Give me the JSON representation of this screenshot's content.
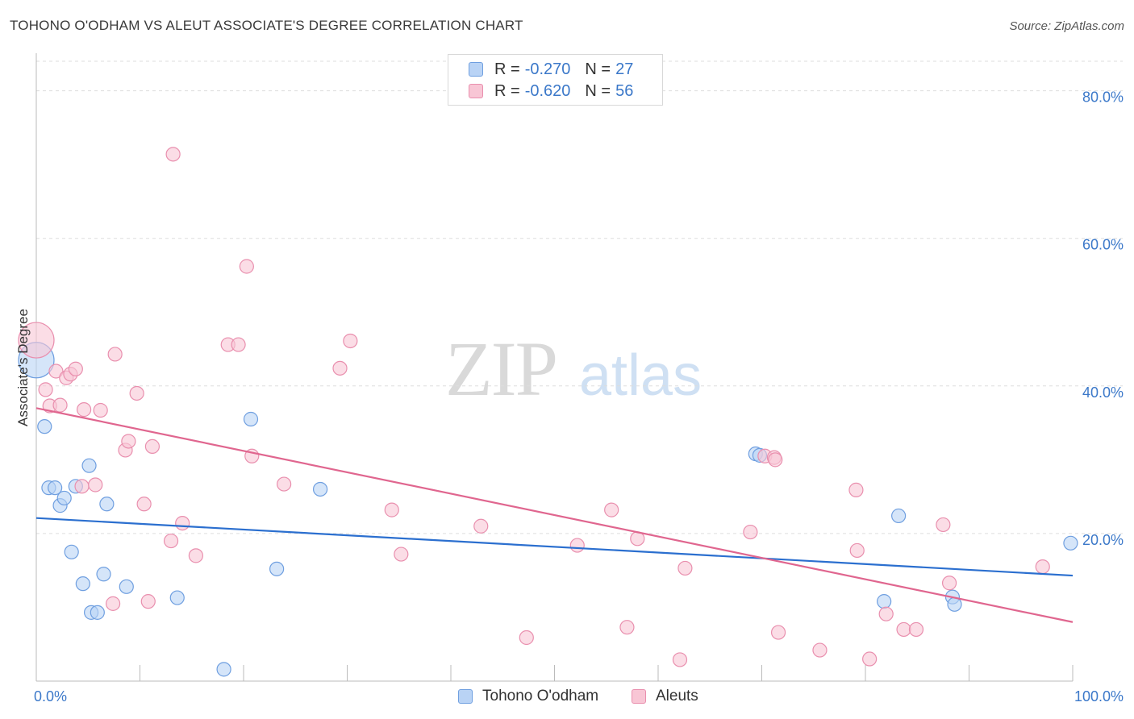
{
  "title": "TOHONO O'ODHAM VS ALEUT ASSOCIATE'S DEGREE CORRELATION CHART",
  "source": "Source: ZipAtlas.com",
  "watermark": {
    "zip": "ZIP",
    "atlas": "atlas"
  },
  "legend_top": {
    "rows": [
      {
        "r_label": "R =",
        "r_value": "-0.270",
        "n_label": "N =",
        "n_value": "27"
      },
      {
        "r_label": "R =",
        "r_value": "-0.620",
        "n_label": "N =",
        "n_value": "56"
      }
    ]
  },
  "legend_bottom": [
    "Tohono O'odham",
    "Aleuts"
  ],
  "colors": {
    "blue_fill": "#b9d3f5",
    "blue_stroke": "#6f9fe0",
    "blue_line": "#2b6fcf",
    "pink_fill": "#f8c6d5",
    "pink_stroke": "#e98fae",
    "pink_line": "#e0668f",
    "tick_text": "#3b78c9",
    "grid": "#dddddd"
  },
  "chart_data": {
    "type": "scatter",
    "title": "TOHONO O'ODHAM VS ALEUT ASSOCIATE'S DEGREE CORRELATION CHART",
    "xlabel": "",
    "ylabel": "Associate's Degree",
    "xlim": [
      0,
      100
    ],
    "ylim": [
      0,
      84
    ],
    "x_tick_labels": [
      "0.0%",
      "100.0%"
    ],
    "y_ticks": [
      20,
      40,
      60,
      80
    ],
    "y_tick_labels": [
      "20.0%",
      "40.0%",
      "60.0%",
      "80.0%"
    ],
    "grid": "horizontal dashed",
    "legend": "top-center",
    "series": [
      {
        "name": "Tohono O'odham",
        "color": "#6f9fe0",
        "points": [
          [
            0.0,
            43.5
          ],
          [
            0.8,
            34.5
          ],
          [
            1.2,
            26.2
          ],
          [
            1.8,
            26.2
          ],
          [
            2.3,
            23.8
          ],
          [
            2.7,
            24.8
          ],
          [
            3.4,
            17.5
          ],
          [
            4.5,
            13.2
          ],
          [
            3.8,
            26.4
          ],
          [
            5.1,
            29.2
          ],
          [
            5.3,
            9.3
          ],
          [
            5.9,
            9.3
          ],
          [
            6.5,
            14.5
          ],
          [
            6.8,
            24.0
          ],
          [
            8.7,
            12.8
          ],
          [
            13.6,
            11.3
          ],
          [
            18.1,
            1.6
          ],
          [
            20.7,
            35.5
          ],
          [
            23.2,
            15.2
          ],
          [
            27.4,
            26.0
          ],
          [
            69.4,
            30.8
          ],
          [
            69.8,
            30.6
          ],
          [
            83.2,
            22.4
          ],
          [
            81.8,
            10.8
          ],
          [
            88.4,
            11.4
          ],
          [
            88.6,
            10.4
          ],
          [
            99.8,
            18.7
          ]
        ]
      },
      {
        "name": "Aleuts",
        "color": "#e98fae",
        "points": [
          [
            0.0,
            46.2
          ],
          [
            0.9,
            39.5
          ],
          [
            1.3,
            37.3
          ],
          [
            1.9,
            42.0
          ],
          [
            2.3,
            37.4
          ],
          [
            2.9,
            41.1
          ],
          [
            3.3,
            41.6
          ],
          [
            3.8,
            42.3
          ],
          [
            4.4,
            26.4
          ],
          [
            4.6,
            36.8
          ],
          [
            5.7,
            26.6
          ],
          [
            6.2,
            36.7
          ],
          [
            7.4,
            10.5
          ],
          [
            7.6,
            44.3
          ],
          [
            8.6,
            31.3
          ],
          [
            8.9,
            32.5
          ],
          [
            9.7,
            39.0
          ],
          [
            10.4,
            24.0
          ],
          [
            10.8,
            10.8
          ],
          [
            11.2,
            31.8
          ],
          [
            13.0,
            19.0
          ],
          [
            13.2,
            71.4
          ],
          [
            14.1,
            21.4
          ],
          [
            15.4,
            17.0
          ],
          [
            18.5,
            45.6
          ],
          [
            19.5,
            45.6
          ],
          [
            20.3,
            56.2
          ],
          [
            20.8,
            30.5
          ],
          [
            23.9,
            26.7
          ],
          [
            29.3,
            42.4
          ],
          [
            30.3,
            46.1
          ],
          [
            34.3,
            23.2
          ],
          [
            35.2,
            17.2
          ],
          [
            42.9,
            21.0
          ],
          [
            47.3,
            5.9
          ],
          [
            52.2,
            18.4
          ],
          [
            55.5,
            23.2
          ],
          [
            57.0,
            7.3
          ],
          [
            58.0,
            19.3
          ],
          [
            62.1,
            2.9
          ],
          [
            62.6,
            15.3
          ],
          [
            68.9,
            20.2
          ],
          [
            70.3,
            30.5
          ],
          [
            71.2,
            30.3
          ],
          [
            71.3,
            30.0
          ],
          [
            71.6,
            6.6
          ],
          [
            75.6,
            4.2
          ],
          [
            79.1,
            25.9
          ],
          [
            79.2,
            17.7
          ],
          [
            80.4,
            3.0
          ],
          [
            82.0,
            9.1
          ],
          [
            83.7,
            7.0
          ],
          [
            84.9,
            7.0
          ],
          [
            87.5,
            21.2
          ],
          [
            88.1,
            13.3
          ],
          [
            97.1,
            15.5
          ]
        ]
      }
    ],
    "trend_lines": [
      {
        "name": "Tohono O'odham",
        "x": [
          0,
          100
        ],
        "y": [
          22.1,
          14.3
        ]
      },
      {
        "name": "Aleuts",
        "x": [
          0,
          100
        ],
        "y": [
          37.0,
          8.0
        ]
      }
    ]
  }
}
